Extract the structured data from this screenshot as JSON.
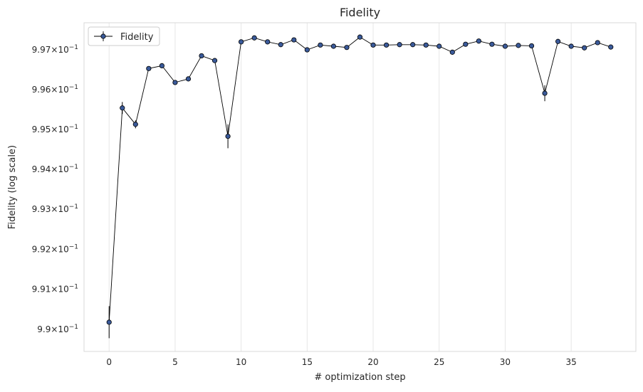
{
  "chart_data": {
    "type": "line",
    "title": "Fidelity",
    "xlabel": "# optimization step",
    "ylabel": "Fidelity (log scale)",
    "y_scale": "log",
    "xlim": [
      -1.9,
      39.9
    ],
    "ylim": [
      0.98945,
      0.99768
    ],
    "grid": "vertical lines only",
    "legend_position": "top-left",
    "x_ticks": [
      0,
      5,
      10,
      15,
      20,
      25,
      30,
      35
    ],
    "x_tick_labels": [
      "0",
      "5",
      "10",
      "15",
      "20",
      "25",
      "30",
      "35"
    ],
    "y_ticks": [
      {
        "value": 0.99,
        "mantissa": "9.9",
        "exp": "−1"
      },
      {
        "value": 0.991,
        "mantissa": "9.91",
        "exp": "−1"
      },
      {
        "value": 0.992,
        "mantissa": "9.92",
        "exp": "−1"
      },
      {
        "value": 0.993,
        "mantissa": "9.93",
        "exp": "−1"
      },
      {
        "value": 0.994,
        "mantissa": "9.94",
        "exp": "−1"
      },
      {
        "value": 0.995,
        "mantissa": "9.95",
        "exp": "−1"
      },
      {
        "value": 0.996,
        "mantissa": "9.96",
        "exp": "−1"
      },
      {
        "value": 0.997,
        "mantissa": "9.97",
        "exp": "−1"
      }
    ],
    "times_sign": "×",
    "base": "10",
    "series": [
      {
        "name": "Fidelity",
        "color": "#3a5a9a",
        "line_color": "#000000",
        "x": [
          0,
          1,
          2,
          3,
          4,
          5,
          6,
          7,
          8,
          9,
          10,
          11,
          12,
          13,
          14,
          15,
          16,
          17,
          18,
          19,
          20,
          21,
          22,
          23,
          24,
          25,
          26,
          27,
          28,
          29,
          30,
          31,
          32,
          33,
          34,
          35,
          36,
          37,
          38
        ],
        "y": [
          0.99018,
          0.99554,
          0.99513,
          0.99653,
          0.9966,
          0.99618,
          0.99627,
          0.99685,
          0.99673,
          0.99483,
          0.9972,
          0.9973,
          0.9972,
          0.99713,
          0.99725,
          0.997,
          0.99712,
          0.99709,
          0.99706,
          0.99732,
          0.99712,
          0.99712,
          0.99713,
          0.99713,
          0.99712,
          0.99709,
          0.99694,
          0.99714,
          0.99722,
          0.99714,
          0.99709,
          0.99711,
          0.9971,
          0.99591,
          0.99721,
          0.99709,
          0.99705,
          0.99718,
          0.99707
        ],
        "err": [
          0.0004,
          0.00015,
          0.0001,
          4e-05,
          4e-05,
          4e-05,
          4e-05,
          4e-05,
          4e-05,
          0.0003,
          4e-05,
          4e-05,
          4e-05,
          4e-05,
          4e-05,
          4e-05,
          4e-05,
          4e-05,
          4e-05,
          4e-05,
          4e-05,
          4e-05,
          4e-05,
          4e-05,
          4e-05,
          4e-05,
          4e-05,
          4e-05,
          4e-05,
          4e-05,
          4e-05,
          4e-05,
          4e-05,
          0.0002,
          4e-05,
          4e-05,
          4e-05,
          4e-05,
          4e-05
        ]
      }
    ]
  }
}
